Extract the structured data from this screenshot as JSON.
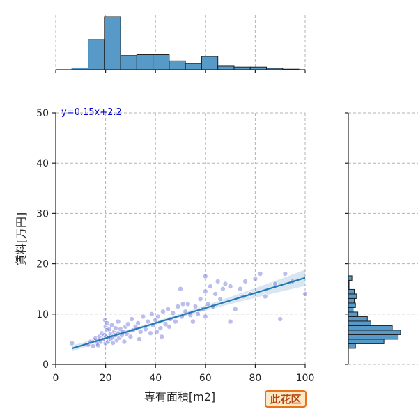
{
  "chart_data": {
    "type": "scatter",
    "title": "",
    "xlabel": "専有面積[m2]",
    "ylabel": "賃料[万円]",
    "xlim": [
      0,
      100
    ],
    "ylim": [
      0,
      50
    ],
    "xticks": [
      "0",
      "20",
      "40",
      "60",
      "80",
      "100"
    ],
    "yticks": [
      "0",
      "10",
      "20",
      "30",
      "40",
      "50"
    ],
    "grid": true,
    "fit_equation": "y=0.15x+2.2",
    "fit": {
      "slope": 0.15,
      "intercept": 2.2,
      "x_range": [
        6.5,
        100
      ]
    },
    "region_label": "此花区",
    "points": [
      [
        6.5,
        4.2
      ],
      [
        13,
        3.9
      ],
      [
        14,
        4.5
      ],
      [
        15,
        3.6
      ],
      [
        15.5,
        4.8
      ],
      [
        16,
        5.2
      ],
      [
        16.5,
        4.2
      ],
      [
        17,
        3.8
      ],
      [
        17.5,
        5.5
      ],
      [
        18,
        4.5
      ],
      [
        18.5,
        6.2
      ],
      [
        19,
        5.0
      ],
      [
        19.5,
        5.8
      ],
      [
        19.8,
        8.8
      ],
      [
        20,
        4.2
      ],
      [
        20,
        7.5
      ],
      [
        20.2,
        5.5
      ],
      [
        20.5,
        8.2
      ],
      [
        20.5,
        6.8
      ],
      [
        21,
        5.2
      ],
      [
        21,
        4.5
      ],
      [
        21.5,
        7.0
      ],
      [
        22,
        6.0
      ],
      [
        22,
        5.0
      ],
      [
        22.5,
        7.8
      ],
      [
        23,
        5.5
      ],
      [
        23,
        4.3
      ],
      [
        23.5,
        6.5
      ],
      [
        24,
        7.2
      ],
      [
        24,
        5.8
      ],
      [
        24.5,
        4.8
      ],
      [
        25,
        6.2
      ],
      [
        25,
        8.5
      ],
      [
        25.5,
        5.3
      ],
      [
        26,
        7.0
      ],
      [
        26.5,
        5.8
      ],
      [
        27,
        6.5
      ],
      [
        27.5,
        4.5
      ],
      [
        28,
        7.5
      ],
      [
        28.5,
        6.0
      ],
      [
        29,
        8.0
      ],
      [
        30,
        5.5
      ],
      [
        30.5,
        9.0
      ],
      [
        31,
        6.8
      ],
      [
        32,
        7.5
      ],
      [
        33,
        8.2
      ],
      [
        33.5,
        5.0
      ],
      [
        34,
        6.5
      ],
      [
        35,
        9.5
      ],
      [
        36,
        7.0
      ],
      [
        37,
        8.5
      ],
      [
        38,
        6.2
      ],
      [
        38.5,
        10.0
      ],
      [
        39,
        7.8
      ],
      [
        40,
        8.8
      ],
      [
        40.5,
        6.5
      ],
      [
        41,
        9.5
      ],
      [
        42,
        7.2
      ],
      [
        42.5,
        5.5
      ],
      [
        43,
        10.5
      ],
      [
        44,
        8.0
      ],
      [
        45,
        11.0
      ],
      [
        45.5,
        7.5
      ],
      [
        46,
        9.0
      ],
      [
        47,
        10.2
      ],
      [
        48,
        8.5
      ],
      [
        49,
        11.5
      ],
      [
        50,
        15.0
      ],
      [
        50.5,
        9.5
      ],
      [
        51,
        12.0
      ],
      [
        52,
        10.5
      ],
      [
        53,
        12.0
      ],
      [
        54,
        9.8
      ],
      [
        55,
        8.5
      ],
      [
        56,
        11.5
      ],
      [
        57,
        10.0
      ],
      [
        58,
        13.0
      ],
      [
        59,
        11.0
      ],
      [
        60,
        14.5
      ],
      [
        60,
        17.5
      ],
      [
        60,
        9.5
      ],
      [
        61,
        12.0
      ],
      [
        62,
        15.5
      ],
      [
        63,
        11.5
      ],
      [
        64,
        14.0
      ],
      [
        65,
        16.5
      ],
      [
        66,
        13.0
      ],
      [
        67,
        15.0
      ],
      [
        68,
        16.0
      ],
      [
        70,
        15.5
      ],
      [
        70,
        8.5
      ],
      [
        72,
        11.0
      ],
      [
        74,
        15.0
      ],
      [
        75,
        13.5
      ],
      [
        76,
        16.5
      ],
      [
        78,
        14.0
      ],
      [
        80,
        17.0
      ],
      [
        82,
        18.0
      ],
      [
        84,
        13.5
      ],
      [
        88,
        16.0
      ],
      [
        90,
        9.0
      ],
      [
        92,
        18.0
      ],
      [
        95,
        16.5
      ],
      [
        100,
        14.0
      ]
    ],
    "top_histogram": {
      "bin_edges": [
        6.5,
        13,
        19.5,
        26,
        32.5,
        39,
        45.5,
        52,
        58.5,
        65,
        71.5,
        78,
        84.5,
        91,
        97.5
      ],
      "counts": [
        1,
        17,
        30,
        8,
        8.5,
        8.5,
        5,
        3.5,
        7.5,
        2,
        1.5,
        1.5,
        0.8,
        0.3
      ]
    },
    "right_histogram": {
      "bin_edges": [
        3.2,
        4.1,
        5.0,
        5.9,
        6.8,
        7.7,
        8.6,
        9.5,
        10.4,
        11.3,
        12.2,
        13.1,
        14.0,
        14.9,
        15.8,
        16.7,
        17.6
      ],
      "counts": [
        3,
        15,
        21,
        22,
        18.5,
        9.5,
        8,
        4,
        2,
        3,
        2.5,
        3.5,
        2.5,
        0.3,
        0.3,
        1.5
      ]
    }
  }
}
